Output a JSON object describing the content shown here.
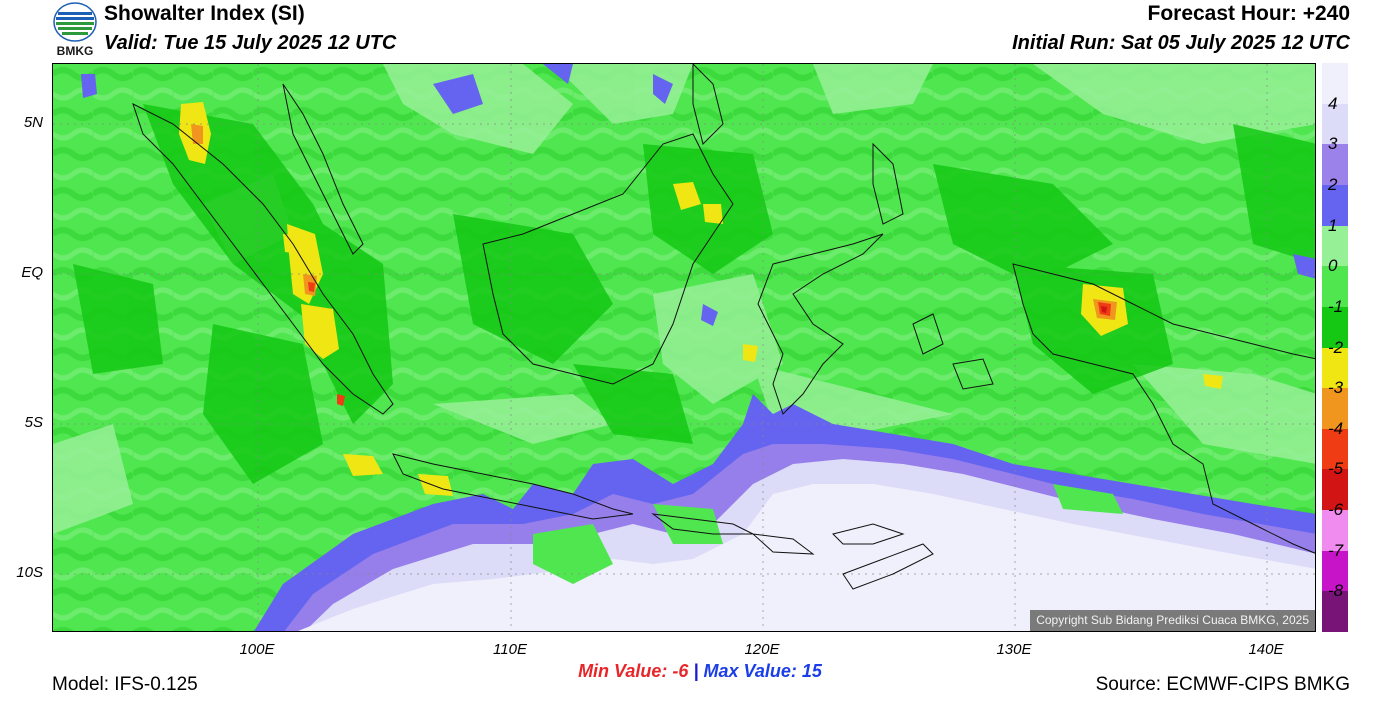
{
  "header": {
    "title": "Showalter Index (SI)",
    "valid": "Valid: Tue 15 July 2025 12 UTC",
    "forecast_hour": "Forecast Hour: +240",
    "initial_run": "Initial Run: Sat 05 July 2025 12 UTC",
    "logo_text": "BMKG"
  },
  "map": {
    "lat_labels": [
      "5N",
      "EQ",
      "5S",
      "10S"
    ],
    "lon_labels": [
      "100E",
      "110E",
      "120E",
      "130E",
      "140E"
    ],
    "copyright": "Copyright Sub Bidang Prediksi Cuaca BMKG, 2025"
  },
  "legend": {
    "labels": [
      "4",
      "3",
      "2",
      "1",
      "0",
      "-1",
      "-2",
      "-3",
      "-4",
      "-5",
      "-6",
      "-7",
      "-8"
    ],
    "colors": [
      "#f0f0fc",
      "#dcdcf8",
      "#9b82ea",
      "#6464f0",
      "#96f096",
      "#50e650",
      "#14c814",
      "#f0e614",
      "#f0961e",
      "#f03c14",
      "#d21414",
      "#f08cf0",
      "#c814c8",
      "#781478"
    ]
  },
  "stats": {
    "min_label": "Min Value:",
    "min_value": "-6",
    "separator": "|",
    "max_label": "Max Value:",
    "max_value": "15"
  },
  "footer": {
    "model": "Model: IFS-0.125",
    "source": "Source: ECMWF-CIPS BMKG"
  }
}
